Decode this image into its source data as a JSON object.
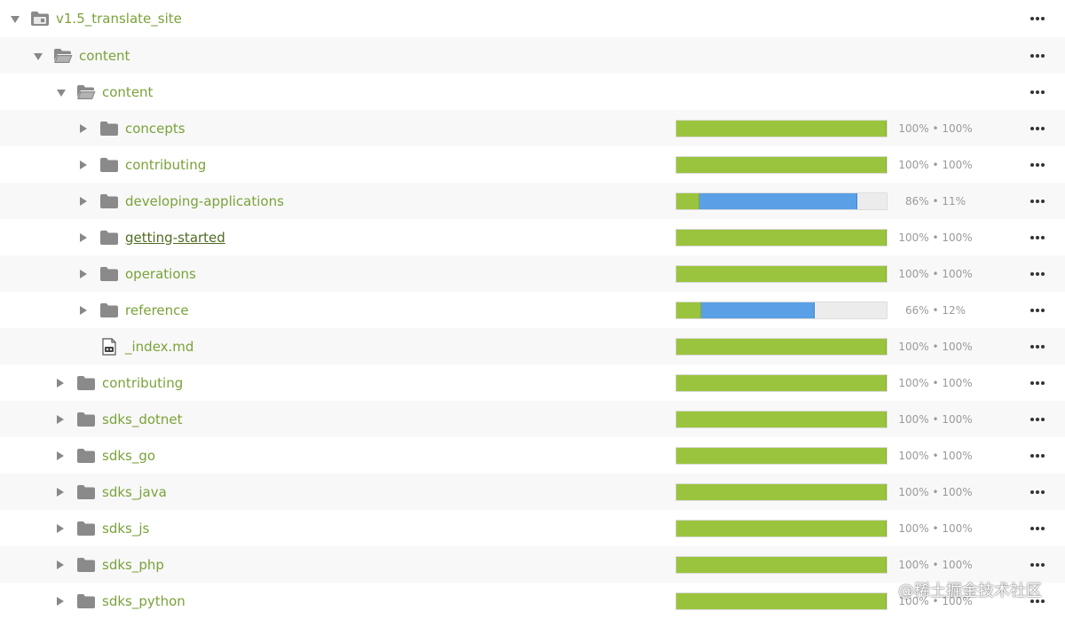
{
  "tree": {
    "rows": [
      {
        "name": "v1.5_translate_site",
        "expanded": true,
        "icon": "project-folder-icon",
        "progress": null
      },
      {
        "name": "content",
        "expanded": true,
        "icon": "folder-open-icon",
        "progress": null
      },
      {
        "name": "content",
        "expanded": true,
        "icon": "folder-open-icon",
        "progress": null
      },
      {
        "name": "concepts",
        "expanded": false,
        "icon": "folder-icon",
        "progress": {
          "approved_pct": 100,
          "translated_pct": 100,
          "label": "100% • 100%"
        }
      },
      {
        "name": "contributing",
        "expanded": false,
        "icon": "folder-icon",
        "progress": {
          "approved_pct": 100,
          "translated_pct": 100,
          "label": "100% • 100%"
        }
      },
      {
        "name": "developing-applications",
        "expanded": false,
        "icon": "folder-icon",
        "progress": {
          "approved_pct": 11,
          "translated_pct": 86,
          "label": "86% • 11%"
        }
      },
      {
        "name": "getting-started",
        "expanded": false,
        "icon": "folder-icon",
        "progress": {
          "approved_pct": 100,
          "translated_pct": 100,
          "label": "100% • 100%"
        }
      },
      {
        "name": "operations",
        "expanded": false,
        "icon": "folder-icon",
        "progress": {
          "approved_pct": 100,
          "translated_pct": 100,
          "label": "100% • 100%"
        }
      },
      {
        "name": "reference",
        "expanded": false,
        "icon": "folder-icon",
        "progress": {
          "approved_pct": 12,
          "translated_pct": 66,
          "label": "66% • 12%"
        }
      },
      {
        "name": "_index.md",
        "expanded": null,
        "icon": "markdown-file-icon",
        "progress": {
          "approved_pct": 100,
          "translated_pct": 100,
          "label": "100% • 100%"
        }
      },
      {
        "name": "contributing",
        "expanded": false,
        "icon": "folder-icon",
        "progress": {
          "approved_pct": 100,
          "translated_pct": 100,
          "label": "100% • 100%"
        }
      },
      {
        "name": "sdks_dotnet",
        "expanded": false,
        "icon": "folder-icon",
        "progress": {
          "approved_pct": 100,
          "translated_pct": 100,
          "label": "100% • 100%"
        }
      },
      {
        "name": "sdks_go",
        "expanded": false,
        "icon": "folder-icon",
        "progress": {
          "approved_pct": 100,
          "translated_pct": 100,
          "label": "100% • 100%"
        }
      },
      {
        "name": "sdks_java",
        "expanded": false,
        "icon": "folder-icon",
        "progress": {
          "approved_pct": 100,
          "translated_pct": 100,
          "label": "100% • 100%"
        }
      },
      {
        "name": "sdks_js",
        "expanded": false,
        "icon": "folder-icon",
        "progress": {
          "approved_pct": 100,
          "translated_pct": 100,
          "label": "100% • 100%"
        }
      },
      {
        "name": "sdks_php",
        "expanded": false,
        "icon": "folder-icon",
        "progress": {
          "approved_pct": 100,
          "translated_pct": 100,
          "label": "100% • 100%"
        }
      },
      {
        "name": "sdks_python",
        "expanded": false,
        "icon": "folder-icon",
        "progress": {
          "approved_pct": 100,
          "translated_pct": 100,
          "label": "100% • 100%"
        }
      }
    ]
  },
  "watermark": "@稀土掘金技术社区",
  "colors": {
    "name_text": "#7aa23a",
    "approved_bar": "#9bc43e",
    "translated_bar": "#5aa0e6",
    "bar_track": "#ececec",
    "stat_text": "#9a9a9a",
    "folder": "#8a8a8a"
  }
}
